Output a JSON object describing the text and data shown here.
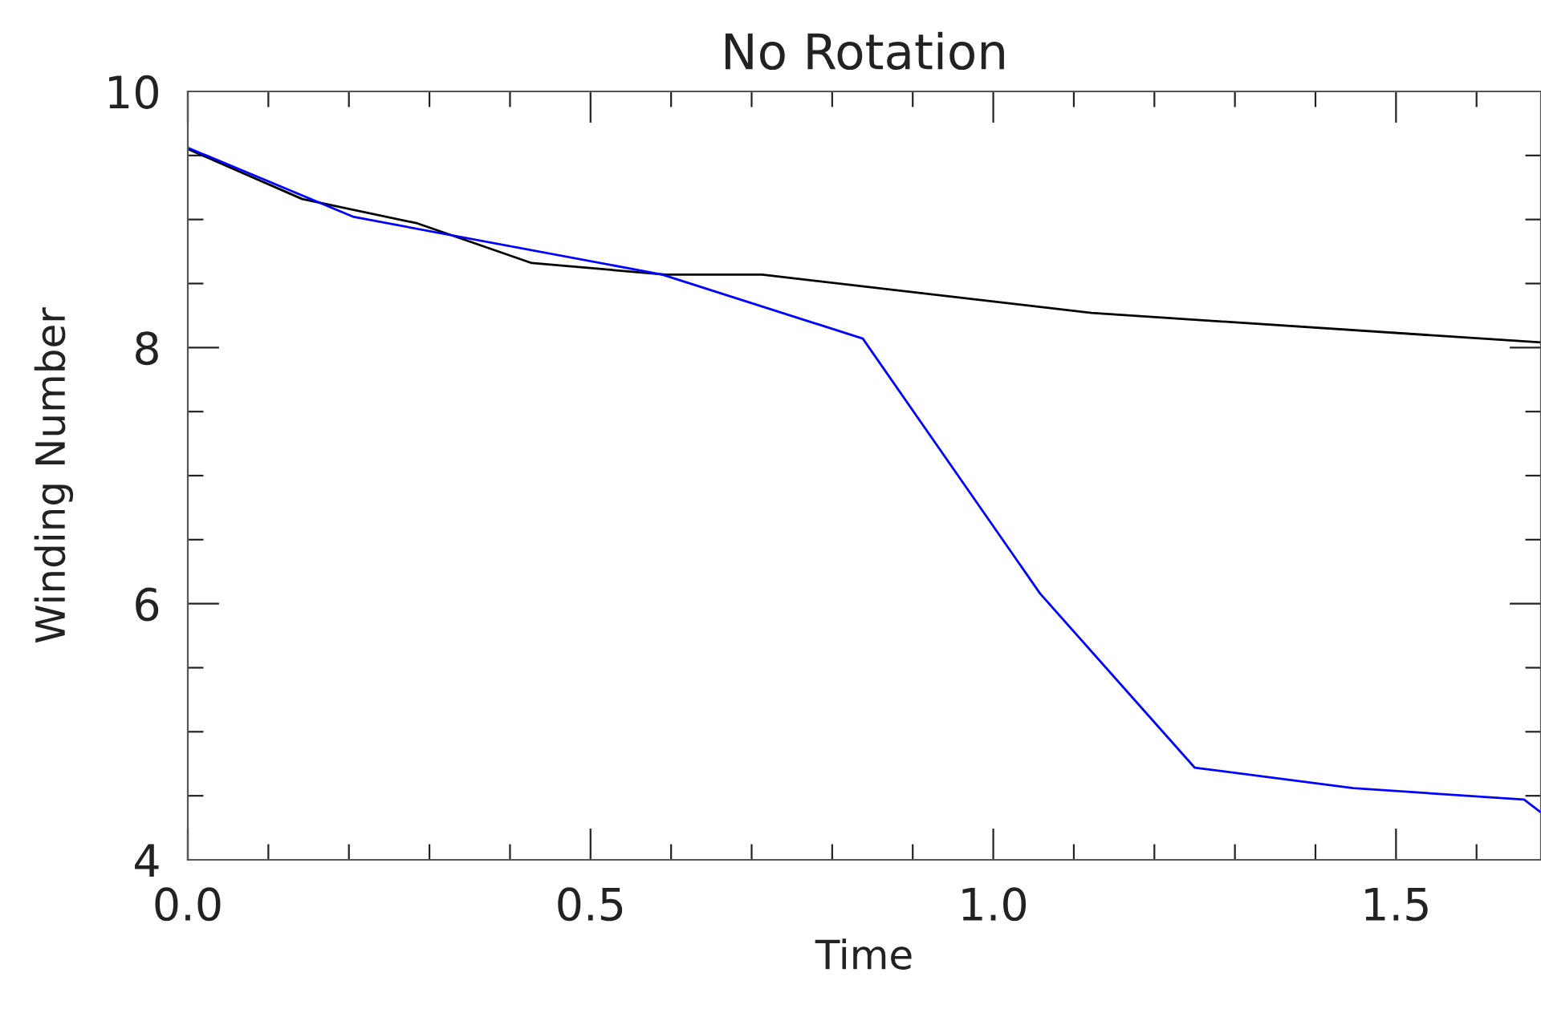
{
  "chart_data": {
    "type": "line",
    "title": "No Rotation",
    "xlabel": "Time",
    "ylabel": "Winding Number",
    "xlim": [
      0,
      1.68
    ],
    "ylim": [
      4,
      10
    ],
    "xticks": [
      {
        "value": 0,
        "label": "0.0"
      },
      0.5,
      {
        "value": 1,
        "label": "1.0"
      },
      1.5
    ],
    "yticks": [
      4,
      6,
      8,
      10
    ],
    "grid": false,
    "legend": false,
    "marker": "none",
    "line_style": "solid",
    "series": [
      {
        "color": "#000000",
        "x": [
          0,
          0.142,
          0.285,
          0.427,
          0.593,
          0.713,
          1.122,
          1.68
        ],
        "values": [
          9.55,
          9.16,
          8.97,
          8.66,
          8.57,
          8.57,
          8.27,
          8.04
        ]
      },
      {
        "color": "#0000ff",
        "x": [
          0,
          0.206,
          0.589,
          0.838,
          1.058,
          1.25,
          1.447,
          1.659,
          1.68
        ],
        "values": [
          9.56,
          9.02,
          8.57,
          8.07,
          6.08,
          4.72,
          4.56,
          4.47,
          4.37
        ]
      }
    ]
  }
}
